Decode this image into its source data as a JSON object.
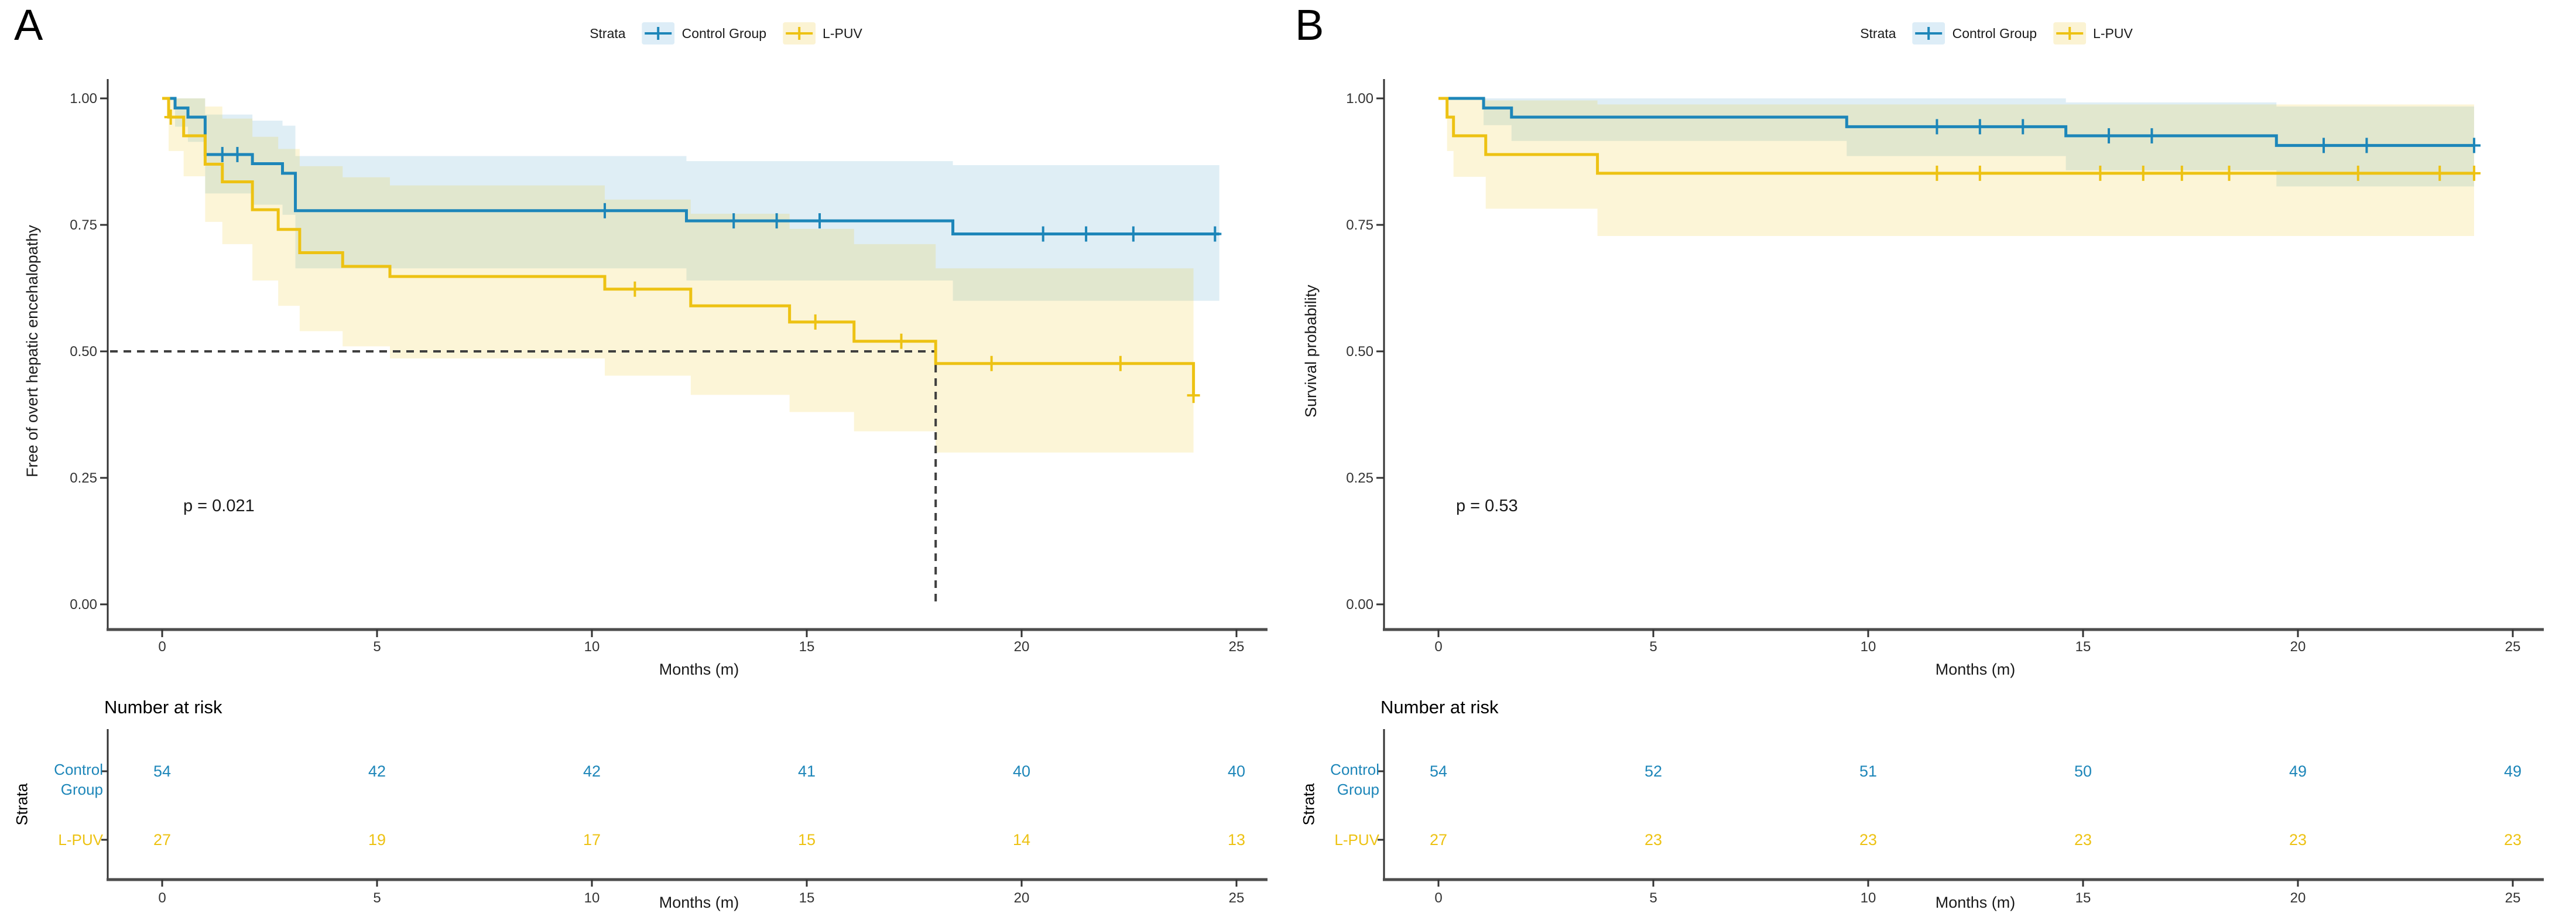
{
  "colors": {
    "control_group": "#1d86b9",
    "control_group_light": "#ddedf7",
    "l_puv": "#edc213",
    "l_puv_light": "#fbf3d3",
    "axis": "#4d4d4d",
    "text": "#333333",
    "guide": "#3f3f3f"
  },
  "figure": {
    "panelA": {
      "letter": "A",
      "legend_title": "Strata",
      "legend_items": [
        "Control Group",
        "L-PUV"
      ],
      "ylabel": "Free of overt hepatic encehalopathy",
      "xlabel": "Months (m)",
      "p_value": "p = 0.021",
      "risk_title": "Number at risk",
      "strata_label": "Strata",
      "risk_row_labels": [
        "Control\nGroup",
        "L-PUV"
      ],
      "risk_xlabel": "Months (m)"
    },
    "panelB": {
      "letter": "B",
      "legend_title": "Strata",
      "legend_items": [
        "Control Group",
        "L-PUV"
      ],
      "ylabel": "Survival probability",
      "xlabel": "Months (m)",
      "p_value": "p = 0.53",
      "risk_title": "Number at risk",
      "strata_label": "Strata",
      "risk_row_labels": [
        "Control\nGroup",
        "L-PUV"
      ],
      "risk_xlabel": "Months (m)"
    }
  },
  "chart_data": [
    {
      "type": "line",
      "subtype": "kaplan-meier",
      "panel": "A",
      "title": "",
      "xlabel": "Months (m)",
      "ylabel": "Free of overt hepatic encehalopathy",
      "p_value": "p = 0.021",
      "xlim": [
        0,
        25
      ],
      "ylim": [
        0,
        1
      ],
      "xticks": [
        0,
        5,
        10,
        15,
        20,
        25
      ],
      "yticks": [
        {
          "v": 1.0,
          "label": "1.00"
        },
        {
          "v": 0.75,
          "label": "0.75"
        },
        {
          "v": 0.5,
          "label": "0.50"
        },
        {
          "v": 0.25,
          "label": "0.25"
        },
        {
          "v": 0.0,
          "label": "0.00"
        }
      ],
      "legend_position": "top",
      "grid": false,
      "median_guide": {
        "x": 18,
        "y": 0.5
      },
      "series": [
        {
          "name": "Control Group",
          "steps": [
            [
              0,
              1
            ],
            [
              0.3,
              0.981
            ],
            [
              0.6,
              0.963
            ],
            [
              1,
              0.889
            ],
            [
              2.1,
              0.871
            ],
            [
              2.8,
              0.852
            ],
            [
              3.1,
              0.778
            ],
            [
              12.2,
              0.758
            ],
            [
              18.4,
              0.732
            ],
            [
              24.6,
              0.732
            ]
          ],
          "censors": [
            [
              1.4,
              0.889
            ],
            [
              1.75,
              0.889
            ],
            [
              10.3,
              0.778
            ],
            [
              13.3,
              0.758
            ],
            [
              14.3,
              0.758
            ],
            [
              15.3,
              0.758
            ],
            [
              20.5,
              0.732
            ],
            [
              21.5,
              0.732
            ],
            [
              22.6,
              0.732
            ],
            [
              24.5,
              0.732
            ]
          ],
          "ci": [
            [
              0,
              1,
              1
            ],
            [
              0.3,
              0.944,
              1
            ],
            [
              0.6,
              0.914,
              1
            ],
            [
              1,
              0.812,
              0.968
            ],
            [
              2.1,
              0.79,
              0.956
            ],
            [
              2.8,
              0.77,
              0.946
            ],
            [
              3.1,
              0.664,
              0.886
            ],
            [
              12.2,
              0.64,
              0.876
            ],
            [
              18.4,
              0.6,
              0.868
            ],
            [
              24.6,
              0.6,
              0.868
            ]
          ]
        },
        {
          "name": "L-PUV",
          "steps": [
            [
              0,
              1
            ],
            [
              0.15,
              0.963
            ],
            [
              0.5,
              0.926
            ],
            [
              1,
              0.87
            ],
            [
              1.4,
              0.835
            ],
            [
              2.1,
              0.78
            ],
            [
              2.7,
              0.741
            ],
            [
              3.2,
              0.695
            ],
            [
              4.2,
              0.668
            ],
            [
              5.3,
              0.648
            ],
            [
              10.3,
              0.623
            ],
            [
              12.3,
              0.59
            ],
            [
              14.6,
              0.558
            ],
            [
              16.1,
              0.52
            ],
            [
              18,
              0.476
            ],
            [
              24,
              0.476
            ],
            [
              24,
              0.413
            ]
          ],
          "censors": [
            [
              0.2,
              0.963
            ],
            [
              11,
              0.623
            ],
            [
              15.2,
              0.558
            ],
            [
              17.2,
              0.52
            ],
            [
              19.3,
              0.476
            ],
            [
              22.3,
              0.476
            ],
            [
              24,
              0.413
            ]
          ],
          "ci": [
            [
              0,
              1,
              1
            ],
            [
              0.15,
              0.896,
              1
            ],
            [
              0.5,
              0.846,
              1
            ],
            [
              1,
              0.756,
              0.984
            ],
            [
              1.4,
              0.712,
              0.96
            ],
            [
              2.1,
              0.64,
              0.924
            ],
            [
              2.7,
              0.59,
              0.9
            ],
            [
              3.2,
              0.54,
              0.866
            ],
            [
              4.2,
              0.51,
              0.844
            ],
            [
              5.3,
              0.486,
              0.828
            ],
            [
              10.3,
              0.452,
              0.8
            ],
            [
              12.3,
              0.414,
              0.772
            ],
            [
              14.6,
              0.38,
              0.742
            ],
            [
              16.1,
              0.342,
              0.712
            ],
            [
              18,
              0.3,
              0.664
            ],
            [
              24,
              0.3,
              0.664
            ]
          ]
        }
      ],
      "risk_table": {
        "title": "Number at risk",
        "strata_label": "Strata",
        "times": [
          0,
          5,
          10,
          15,
          20,
          25
        ],
        "rows": [
          {
            "label": "Control Group",
            "counts": [
              54,
              42,
              42,
              41,
              40,
              40
            ]
          },
          {
            "label": "L-PUV",
            "counts": [
              27,
              19,
              17,
              15,
              14,
              13
            ]
          }
        ]
      }
    },
    {
      "type": "line",
      "subtype": "kaplan-meier",
      "panel": "B",
      "title": "",
      "xlabel": "Months (m)",
      "ylabel": "Survival probability",
      "p_value": "p = 0.53",
      "xlim": [
        0,
        25
      ],
      "ylim": [
        0,
        1
      ],
      "xticks": [
        0,
        5,
        10,
        15,
        20,
        25
      ],
      "yticks": [
        {
          "v": 1.0,
          "label": "1.00"
        },
        {
          "v": 0.75,
          "label": "0.75"
        },
        {
          "v": 0.5,
          "label": "0.50"
        },
        {
          "v": 0.25,
          "label": "0.25"
        },
        {
          "v": 0.0,
          "label": "0.00"
        }
      ],
      "legend_position": "top",
      "grid": false,
      "median_guide": null,
      "series": [
        {
          "name": "Control Group",
          "steps": [
            [
              0,
              1
            ],
            [
              1.05,
              0.981
            ],
            [
              1.7,
              0.963
            ],
            [
              9.5,
              0.944
            ],
            [
              14.6,
              0.926
            ],
            [
              19.5,
              0.907
            ],
            [
              24.1,
              0.907
            ]
          ],
          "censors": [
            [
              11.6,
              0.944
            ],
            [
              12.6,
              0.944
            ],
            [
              13.6,
              0.944
            ],
            [
              15.6,
              0.926
            ],
            [
              16.6,
              0.926
            ],
            [
              20.6,
              0.907
            ],
            [
              21.6,
              0.907
            ],
            [
              24.1,
              0.907
            ]
          ],
          "ci": [
            [
              0,
              1,
              1
            ],
            [
              1.05,
              0.947,
              1
            ],
            [
              1.7,
              0.916,
              1
            ],
            [
              9.5,
              0.886,
              1
            ],
            [
              14.6,
              0.858,
              0.992
            ],
            [
              19.5,
              0.826,
              0.984
            ],
            [
              24.1,
              0.826,
              0.984
            ]
          ]
        },
        {
          "name": "L-PUV",
          "steps": [
            [
              0,
              1
            ],
            [
              0.2,
              0.963
            ],
            [
              0.35,
              0.926
            ],
            [
              1.1,
              0.889
            ],
            [
              3.7,
              0.852
            ],
            [
              24.1,
              0.852
            ]
          ],
          "censors": [
            [
              11.6,
              0.852
            ],
            [
              12.6,
              0.852
            ],
            [
              15.4,
              0.852
            ],
            [
              16.4,
              0.852
            ],
            [
              17.3,
              0.852
            ],
            [
              18.4,
              0.852
            ],
            [
              21.4,
              0.852
            ],
            [
              23.3,
              0.852
            ],
            [
              24.1,
              0.852
            ]
          ],
          "ci": [
            [
              0,
              1,
              1
            ],
            [
              0.2,
              0.896,
              1
            ],
            [
              0.35,
              0.845,
              1
            ],
            [
              1.1,
              0.782,
              0.996
            ],
            [
              3.7,
              0.728,
              0.988
            ],
            [
              24.1,
              0.728,
              0.988
            ]
          ]
        }
      ],
      "risk_table": {
        "title": "Number at risk",
        "strata_label": "Strata",
        "times": [
          0,
          5,
          10,
          15,
          20,
          25
        ],
        "rows": [
          {
            "label": "Control Group",
            "counts": [
              54,
              52,
              51,
              50,
              49,
              49
            ]
          },
          {
            "label": "L-PUV",
            "counts": [
              27,
              23,
              23,
              23,
              23,
              23
            ]
          }
        ]
      }
    }
  ]
}
